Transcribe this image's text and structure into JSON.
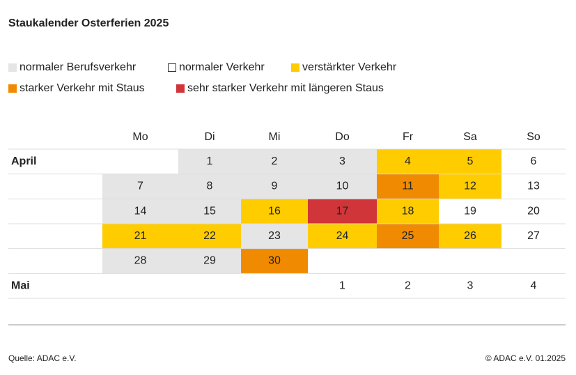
{
  "header": {
    "title": "Staukalender Osterferien 2025"
  },
  "legend": [
    {
      "label": "normaler Berufsverkehr",
      "color": "#e5e5e5",
      "border": "#e5e5e5"
    },
    {
      "label": "normaler Verkehr",
      "color": "#ffffff",
      "border": "#333333"
    },
    {
      "label": "verstärkter Verkehr",
      "color": "#ffcc00",
      "border": "#ffcc00"
    },
    {
      "label": "starker Verkehr mit Staus",
      "color": "#f08a00",
      "border": "#f08a00"
    },
    {
      "label": "sehr starker Verkehr mit längeren Staus",
      "color": "#d0353a",
      "border": "#d0353a"
    }
  ],
  "table": {
    "weekdays": [
      "Mo",
      "Di",
      "Mi",
      "Do",
      "Fr",
      "Sa",
      "So"
    ],
    "rows": [
      {
        "month": "April",
        "cells": [
          null,
          {
            "day": 1,
            "legend": 0
          },
          {
            "day": 2,
            "legend": 0
          },
          {
            "day": 3,
            "legend": 0
          },
          {
            "day": 4,
            "legend": 2
          },
          {
            "day": 5,
            "legend": 2
          },
          {
            "day": 6,
            "legend": 1
          }
        ]
      },
      {
        "month": null,
        "cells": [
          {
            "day": 7,
            "legend": 0
          },
          {
            "day": 8,
            "legend": 0
          },
          {
            "day": 9,
            "legend": 0
          },
          {
            "day": 10,
            "legend": 0
          },
          {
            "day": 11,
            "legend": 3
          },
          {
            "day": 12,
            "legend": 2
          },
          {
            "day": 13,
            "legend": 1
          }
        ]
      },
      {
        "month": null,
        "cells": [
          {
            "day": 14,
            "legend": 0
          },
          {
            "day": 15,
            "legend": 0
          },
          {
            "day": 16,
            "legend": 2
          },
          {
            "day": 17,
            "legend": 4,
            "text_color": "#ffffff"
          },
          {
            "day": 18,
            "legend": 2
          },
          {
            "day": 19,
            "legend": 1
          },
          {
            "day": 20,
            "legend": 1
          }
        ]
      },
      {
        "month": null,
        "cells": [
          {
            "day": 21,
            "legend": 2
          },
          {
            "day": 22,
            "legend": 2
          },
          {
            "day": 23,
            "legend": 0
          },
          {
            "day": 24,
            "legend": 2
          },
          {
            "day": 25,
            "legend": 3
          },
          {
            "day": 26,
            "legend": 2
          },
          {
            "day": 27,
            "legend": 1
          }
        ]
      },
      {
        "month": null,
        "cells": [
          {
            "day": 28,
            "legend": 0
          },
          {
            "day": 29,
            "legend": 0
          },
          {
            "day": 30,
            "legend": 3
          },
          null,
          null,
          null,
          null
        ]
      },
      {
        "month": "Mai",
        "cells": [
          null,
          null,
          null,
          {
            "day": 1,
            "legend": 1
          },
          {
            "day": 2,
            "legend": 1
          },
          {
            "day": 3,
            "legend": 1
          },
          {
            "day": 4,
            "legend": 1
          }
        ]
      }
    ]
  },
  "footer": {
    "source": "Quelle: ADAC e.V.",
    "copyright": "© ADAC e.V. 01.2025"
  }
}
